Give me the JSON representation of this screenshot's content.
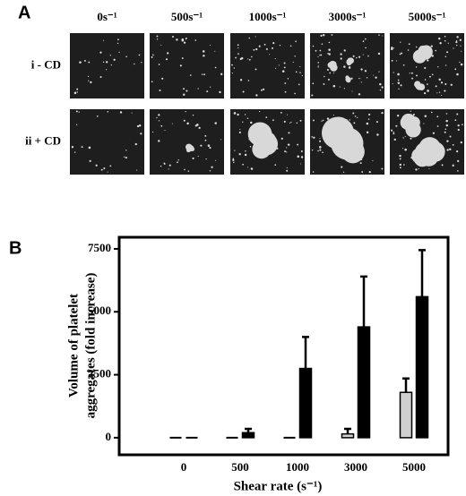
{
  "panel_a": {
    "label": "A",
    "columns": [
      "0s⁻¹",
      "500s⁻¹",
      "1000s⁻¹",
      "3000s⁻¹",
      "5000s⁻¹"
    ],
    "rows": [
      "i - CD",
      "ii + CD"
    ]
  },
  "panel_b_label": "B",
  "chart_data": {
    "type": "bar",
    "categories": [
      "0",
      "500",
      "1000",
      "3000",
      "5000"
    ],
    "series": [
      {
        "color": "#cfcfcf",
        "values": [
          0,
          0,
          0,
          150,
          1800
        ],
        "errors": [
          0,
          0,
          0,
          200,
          550
        ]
      },
      {
        "color": "#000000",
        "values": [
          0,
          200,
          2750,
          4400,
          5600
        ],
        "errors": [
          0,
          150,
          1250,
          2000,
          1850
        ]
      }
    ],
    "ylim": [
      -680,
      7960
    ],
    "yticks": [
      0,
      2500,
      5000,
      7500
    ],
    "ylabel_lines": [
      "Volume of platelet",
      "aggregates (fold increase)"
    ],
    "xlabel": "Shear rate (s⁻¹)"
  }
}
